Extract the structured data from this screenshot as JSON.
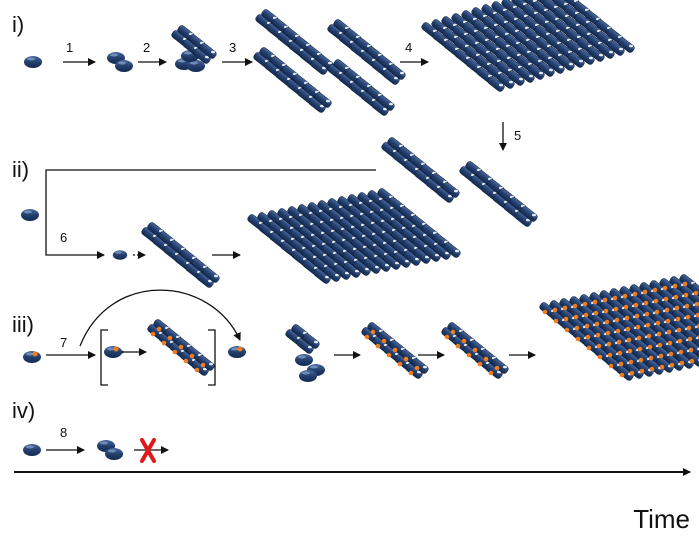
{
  "rows": [
    {
      "label": "i)",
      "steps": [
        "1",
        "2",
        "3",
        "4"
      ]
    },
    {
      "label": "ii)",
      "steps": [
        "6"
      ]
    },
    {
      "label": "iii)",
      "steps": [
        "7"
      ]
    },
    {
      "label": "iv)",
      "steps": [
        "8"
      ]
    }
  ],
  "transition": "5",
  "time_axis": {
    "label": "Time"
  }
}
